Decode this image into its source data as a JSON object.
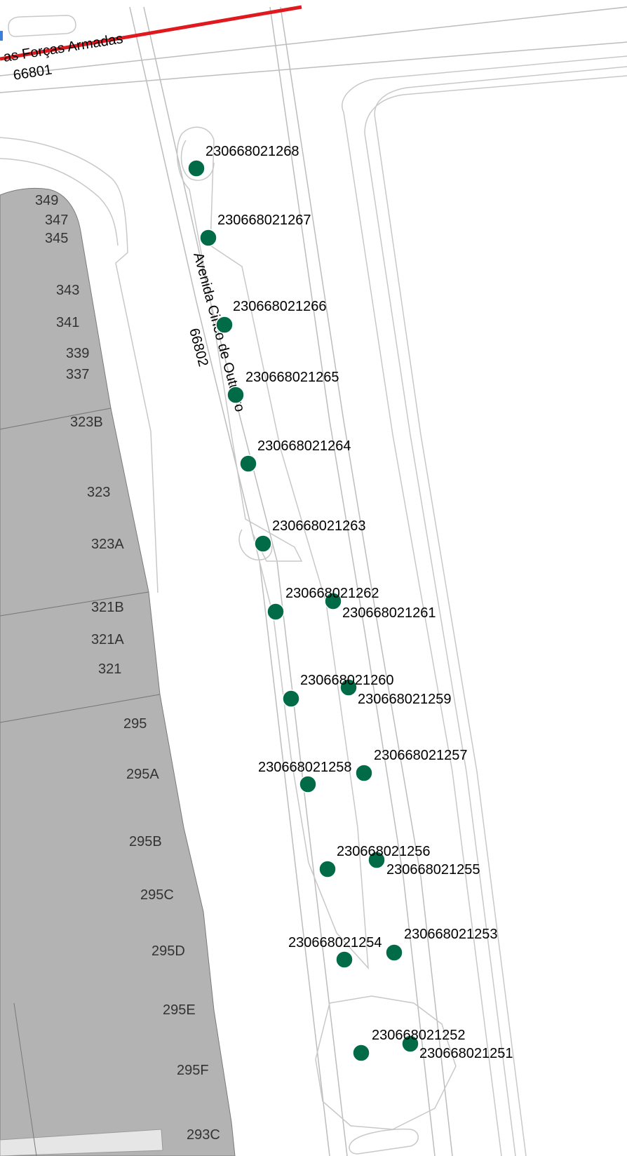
{
  "map": {
    "colors": {
      "building": "#b3b3b3",
      "building_edge": "#7a7a7a",
      "road_line": "#bdbdbd",
      "outline": "#c8c8c8",
      "point": "#006b46",
      "highway": "#e0191e",
      "selection": "#3c7fd8"
    },
    "roads": [
      {
        "name": "as Forças Armadas",
        "code": "66801"
      },
      {
        "name": "Avenida Cinco de Outubro",
        "code": "66802"
      }
    ],
    "points": [
      "230668021268",
      "230668021267",
      "230668021266",
      "230668021265",
      "230668021264",
      "230668021263",
      "230668021262",
      "230668021261",
      "230668021260",
      "230668021259",
      "230668021258",
      "230668021257",
      "230668021256",
      "230668021255",
      "230668021254",
      "230668021253",
      "230668021252",
      "230668021251"
    ],
    "house_numbers": [
      "349",
      "347",
      "345",
      "343",
      "341",
      "339",
      "337",
      "323B",
      "323",
      "323A",
      "321B",
      "321A",
      "321",
      "295",
      "295A",
      "295B",
      "295C",
      "295D",
      "295E",
      "295F",
      "293C"
    ]
  }
}
